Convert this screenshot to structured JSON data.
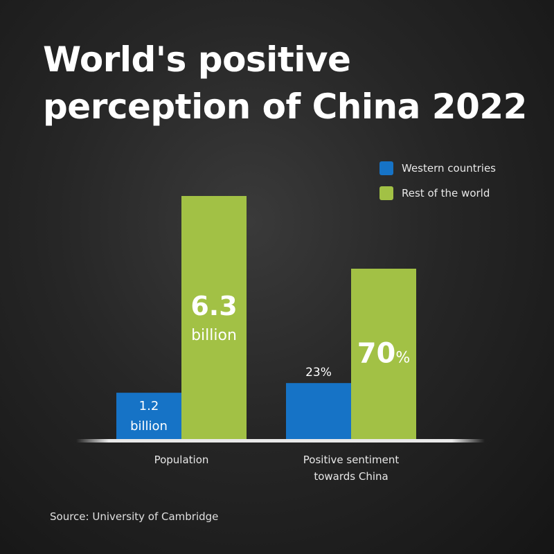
{
  "title_lines": [
    "World's positive",
    "perception of China 2022"
  ],
  "source": "Source: University of Cambridge",
  "colors": {
    "western": "#1673c6",
    "rest": "#a2c145",
    "axis": "#e6e6e6"
  },
  "chart_data": {
    "type": "bar",
    "title": "World's positive perception of China 2022",
    "legend_position": "top-right",
    "categories": [
      {
        "lines": [
          "Population"
        ]
      },
      {
        "lines": [
          "Positive sentiment",
          "towards China"
        ]
      }
    ],
    "series": [
      {
        "name": "Western countries",
        "color": "#1673c6",
        "values": [
          1.2,
          23
        ],
        "labels": [
          {
            "value": "1.2",
            "unit": "billion"
          },
          {
            "value": "23",
            "unit": "%"
          }
        ]
      },
      {
        "name": "Rest of the world",
        "color": "#a2c145",
        "values": [
          6.3,
          70
        ],
        "labels": [
          {
            "value": "6.3",
            "unit": "billion"
          },
          {
            "value": "70",
            "unit": "%"
          }
        ]
      }
    ],
    "units": [
      "billion",
      "%"
    ]
  }
}
